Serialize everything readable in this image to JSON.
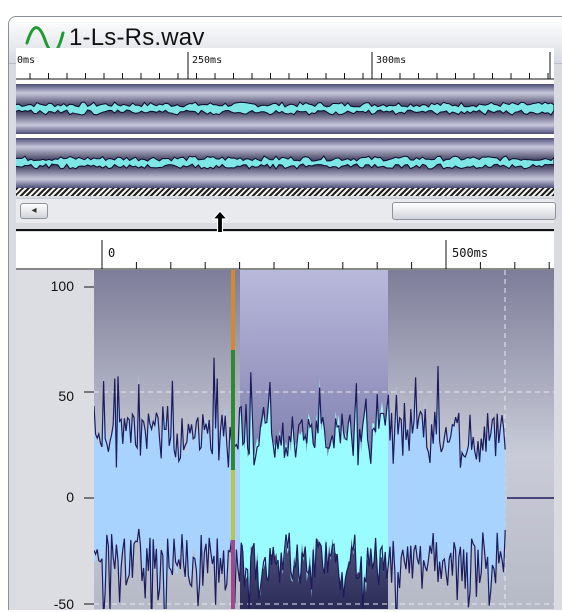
{
  "window": {
    "title": "1-Ls-Rs.wav"
  },
  "overview": {
    "ruler_labels": [
      "0ms",
      "250ms",
      "300ms"
    ]
  },
  "detail": {
    "ruler_labels": [
      "0",
      "500ms"
    ],
    "y_ticks": [
      "100",
      "50",
      "0",
      "-50"
    ]
  },
  "icons": {
    "app": "sine-wave-icon",
    "cursor": "vertical-resize-cursor-icon",
    "scroll_left": "arrow-left-icon"
  },
  "colors": {
    "waveform_fill": "#a9d3ff",
    "selection_fill": "#9afcff",
    "waveform_line": "#1c1c5c",
    "overview_wave": "#7ee6e6"
  }
}
